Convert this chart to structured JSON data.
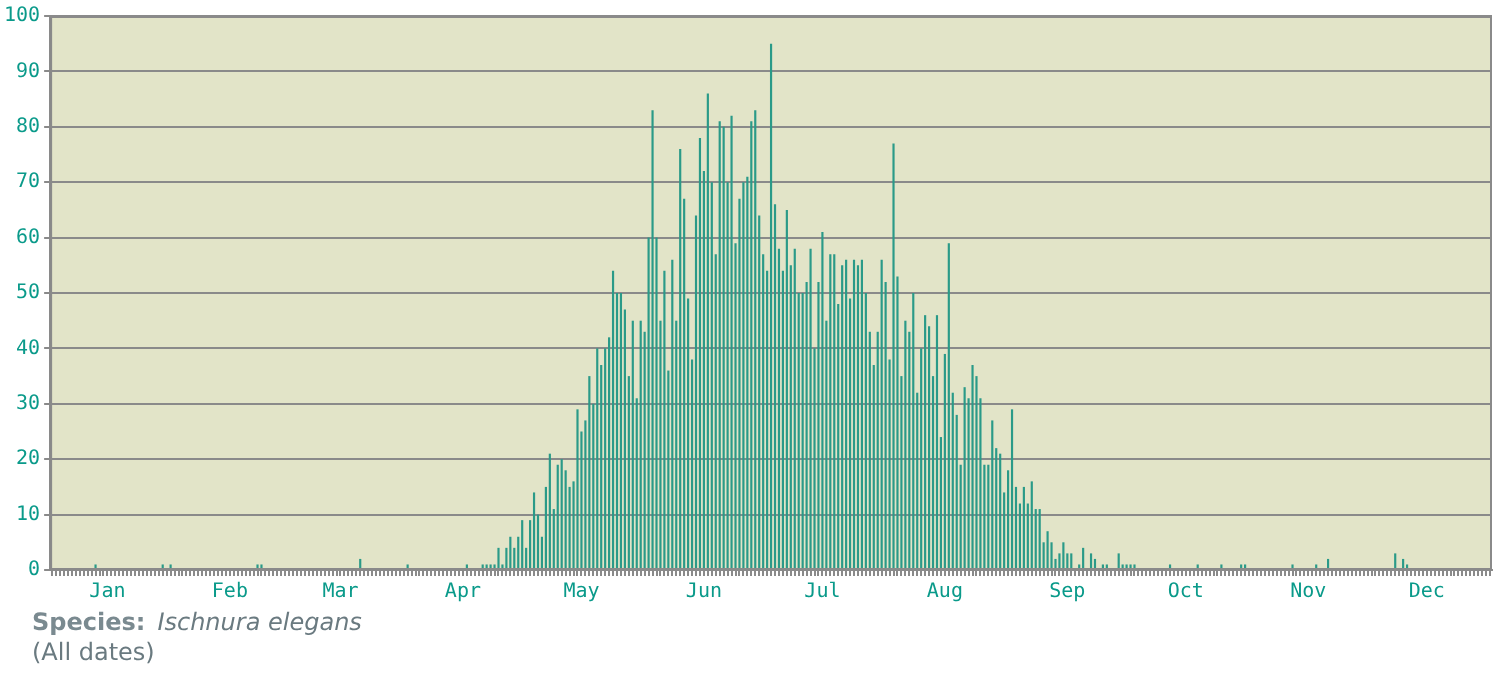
{
  "chart_data": {
    "type": "bar",
    "categories": [
      null,
      null,
      null,
      null,
      null,
      null,
      null,
      null,
      null,
      null,
      null,
      null,
      null,
      null,
      "Jan",
      null,
      null,
      null,
      null,
      null,
      null,
      null,
      null,
      null,
      null,
      null,
      null,
      null,
      null,
      null,
      null,
      null,
      null,
      null,
      null,
      null,
      null,
      null,
      null,
      null,
      null,
      null,
      null,
      null,
      null,
      "Feb",
      null,
      null,
      null,
      null,
      null,
      null,
      null,
      null,
      null,
      null,
      null,
      null,
      null,
      null,
      null,
      null,
      null,
      null,
      null,
      null,
      null,
      null,
      null,
      null,
      null,
      null,
      null,
      "Mar",
      null,
      null,
      null,
      null,
      null,
      null,
      null,
      null,
      null,
      null,
      null,
      null,
      null,
      null,
      null,
      null,
      null,
      null,
      null,
      null,
      null,
      null,
      null,
      null,
      null,
      null,
      null,
      null,
      null,
      null,
      "Apr",
      null,
      null,
      null,
      null,
      null,
      null,
      null,
      null,
      null,
      null,
      null,
      null,
      null,
      null,
      null,
      null,
      null,
      null,
      null,
      null,
      null,
      null,
      null,
      null,
      null,
      null,
      null,
      null,
      null,
      "May",
      null,
      null,
      null,
      null,
      null,
      null,
      null,
      null,
      null,
      null,
      null,
      null,
      null,
      null,
      null,
      null,
      null,
      null,
      null,
      null,
      null,
      null,
      null,
      null,
      null,
      null,
      null,
      null,
      null,
      null,
      "Jun",
      null,
      null,
      null,
      null,
      null,
      null,
      null,
      null,
      null,
      null,
      null,
      null,
      null,
      null,
      null,
      null,
      null,
      null,
      null,
      null,
      null,
      null,
      null,
      null,
      null,
      null,
      null,
      null,
      null,
      "Jul",
      null,
      null,
      null,
      null,
      null,
      null,
      null,
      null,
      null,
      null,
      null,
      null,
      null,
      null,
      null,
      null,
      null,
      null,
      null,
      null,
      null,
      null,
      null,
      null,
      null,
      null,
      null,
      null,
      null,
      null,
      "Aug",
      null,
      null,
      null,
      null,
      null,
      null,
      null,
      null,
      null,
      null,
      null,
      null,
      null,
      null,
      null,
      null,
      null,
      null,
      null,
      null,
      null,
      null,
      null,
      null,
      null,
      null,
      null,
      null,
      null,
      null,
      "Sep",
      null,
      null,
      null,
      null,
      null,
      null,
      null,
      null,
      null,
      null,
      null,
      null,
      null,
      null,
      null,
      null,
      null,
      null,
      null,
      null,
      null,
      null,
      null,
      null,
      null,
      null,
      null,
      null,
      null,
      "Oct",
      null,
      null,
      null,
      null,
      null,
      null,
      null,
      null,
      null,
      null,
      null,
      null,
      null,
      null,
      null,
      null,
      null,
      null,
      null,
      null,
      null,
      null,
      null,
      null,
      null,
      null,
      null,
      null,
      null,
      null,
      "Nov",
      null,
      null,
      null,
      null,
      null,
      null,
      null,
      null,
      null,
      null,
      null,
      null,
      null,
      null,
      null,
      null,
      null,
      null,
      null,
      null,
      null,
      null,
      null,
      null,
      null,
      null,
      null,
      null,
      null,
      "Dec",
      null,
      null,
      null,
      null,
      null,
      null,
      null,
      null,
      null,
      null,
      null,
      null,
      null,
      null,
      null,
      null
    ],
    "values": [
      0,
      0,
      0,
      0,
      0,
      0,
      0,
      0,
      0,
      0,
      0,
      1,
      0,
      0,
      0,
      0,
      0,
      0,
      0,
      0,
      0,
      0,
      0,
      0,
      0,
      0,
      0,
      0,
      1,
      0,
      1,
      0,
      0,
      0,
      0,
      0,
      0,
      0,
      0,
      0,
      0,
      0,
      0,
      0,
      0,
      0,
      0,
      0,
      0,
      0,
      0,
      0,
      1,
      1,
      0,
      0,
      0,
      0,
      0,
      0,
      0,
      0,
      0,
      0,
      0,
      0,
      0,
      0,
      0,
      0,
      0,
      0,
      0,
      0,
      0,
      0,
      0,
      0,
      2,
      0,
      0,
      0,
      0,
      0,
      0,
      0,
      0,
      0,
      0,
      0,
      1,
      0,
      0,
      0,
      0,
      0,
      0,
      0,
      0,
      0,
      0,
      0,
      0,
      0,
      0,
      1,
      0,
      0,
      0,
      1,
      1,
      1,
      1,
      4,
      1,
      4,
      6,
      4,
      6,
      9,
      4,
      9,
      14,
      10,
      6,
      15,
      21,
      11,
      19,
      20,
      18,
      15,
      16,
      29,
      25,
      27,
      35,
      30,
      40,
      37,
      40,
      42,
      54,
      50,
      50,
      47,
      35,
      45,
      31,
      45,
      43,
      60,
      83,
      60,
      45,
      54,
      36,
      56,
      45,
      76,
      67,
      49,
      38,
      64,
      78,
      72,
      86,
      70,
      57,
      81,
      80,
      70,
      82,
      59,
      67,
      70,
      71,
      81,
      83,
      64,
      57,
      54,
      95,
      66,
      58,
      54,
      65,
      55,
      58,
      50,
      50,
      52,
      58,
      40,
      52,
      61,
      45,
      57,
      57,
      48,
      55,
      56,
      49,
      56,
      55,
      56,
      50,
      43,
      37,
      43,
      56,
      52,
      38,
      77,
      53,
      35,
      45,
      43,
      50,
      32,
      40,
      46,
      44,
      35,
      46,
      24,
      39,
      59,
      32,
      28,
      19,
      33,
      31,
      37,
      35,
      31,
      19,
      19,
      27,
      22,
      21,
      14,
      18,
      29,
      15,
      12,
      15,
      12,
      16,
      11,
      11,
      5,
      7,
      5,
      2,
      3,
      5,
      3,
      3,
      0,
      1,
      4,
      0,
      3,
      2,
      0,
      1,
      1,
      0,
      0,
      3,
      1,
      1,
      1,
      1,
      0,
      0,
      0,
      0,
      0,
      0,
      0,
      0,
      1,
      0,
      0,
      0,
      0,
      0,
      0,
      1,
      0,
      0,
      0,
      0,
      0,
      1,
      0,
      0,
      0,
      0,
      1,
      1,
      0,
      0,
      0,
      0,
      0,
      0,
      0,
      0,
      0,
      0,
      0,
      1,
      0,
      0,
      0,
      0,
      0,
      1,
      0,
      0,
      2,
      0,
      0,
      0,
      0,
      0,
      0,
      0,
      0,
      0,
      0,
      0,
      0,
      0,
      0,
      0,
      0,
      3,
      0,
      2,
      1,
      0,
      0,
      0,
      0,
      0,
      0,
      0,
      0,
      0,
      0,
      0,
      0,
      0,
      0,
      0,
      0,
      0,
      0,
      0,
      0,
      0
    ],
    "color": "#2a9a88",
    "ylim": [
      0,
      100
    ],
    "yticks": [
      0,
      10,
      20,
      30,
      40,
      50,
      60,
      70,
      80,
      90,
      100
    ],
    "grid": "y",
    "annotations": [
      "Species:",
      "Ischnura elegans",
      "(All dates)"
    ]
  }
}
